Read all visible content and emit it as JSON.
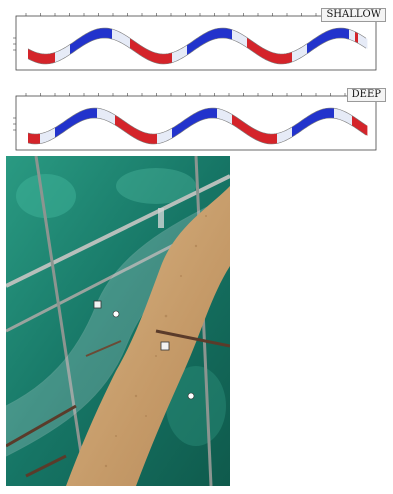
{
  "panels": [
    {
      "id": "shallow",
      "label": "SHALLOW",
      "colors": {
        "high": "#d4242a",
        "low": "#2233cc",
        "mid": "#e6ebf7"
      }
    },
    {
      "id": "deep",
      "label": "DEEP",
      "colors": {
        "high": "#d4242a",
        "low": "#2233cc",
        "mid": "#e6ebf7"
      }
    }
  ],
  "photo": {
    "subject": "sinuous-flume-with-sand-bed",
    "colors": {
      "sand": "#c79e6c",
      "water": "#1f8a6e",
      "frame": "#9aa39e"
    }
  }
}
